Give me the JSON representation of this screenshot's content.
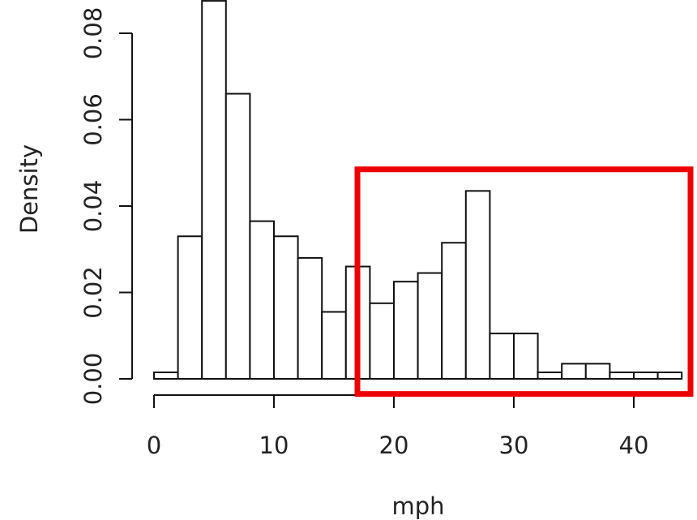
{
  "chart_data": {
    "type": "bar",
    "subtype": "histogram",
    "title": "",
    "xlabel": "mph",
    "ylabel": "Density",
    "bin_width": 2,
    "bins": [
      {
        "start": 0,
        "end": 2,
        "density": 0.0015
      },
      {
        "start": 2,
        "end": 4,
        "density": 0.033
      },
      {
        "start": 4,
        "end": 6,
        "density": 0.0875
      },
      {
        "start": 6,
        "end": 8,
        "density": 0.066
      },
      {
        "start": 8,
        "end": 10,
        "density": 0.0365
      },
      {
        "start": 10,
        "end": 12,
        "density": 0.033
      },
      {
        "start": 12,
        "end": 14,
        "density": 0.028
      },
      {
        "start": 14,
        "end": 16,
        "density": 0.0155
      },
      {
        "start": 16,
        "end": 18,
        "density": 0.026
      },
      {
        "start": 18,
        "end": 20,
        "density": 0.0175
      },
      {
        "start": 20,
        "end": 22,
        "density": 0.0225
      },
      {
        "start": 22,
        "end": 24,
        "density": 0.0245
      },
      {
        "start": 24,
        "end": 26,
        "density": 0.0315
      },
      {
        "start": 26,
        "end": 28,
        "density": 0.0435
      },
      {
        "start": 28,
        "end": 30,
        "density": 0.0105
      },
      {
        "start": 30,
        "end": 32,
        "density": 0.0105
      },
      {
        "start": 32,
        "end": 34,
        "density": 0.0015
      },
      {
        "start": 34,
        "end": 36,
        "density": 0.0035
      },
      {
        "start": 36,
        "end": 38,
        "density": 0.0035
      },
      {
        "start": 38,
        "end": 40,
        "density": 0.0015
      },
      {
        "start": 40,
        "end": 42,
        "density": 0.0015
      },
      {
        "start": 42,
        "end": 44,
        "density": 0.0015
      }
    ],
    "x_ticks": [
      "0",
      "10",
      "20",
      "30",
      "40"
    ],
    "y_ticks": [
      "0.00",
      "0.02",
      "0.04",
      "0.06",
      "0.08"
    ],
    "xlim": [
      0,
      44
    ],
    "ylim": [
      0,
      0.08
    ],
    "grid": false,
    "legend": "none",
    "annotation": {
      "type": "highlight-box",
      "color": "#ee0000",
      "x_range": [
        17.5,
        44.5
      ],
      "y_range": [
        -0.0035,
        0.0485
      ]
    }
  }
}
